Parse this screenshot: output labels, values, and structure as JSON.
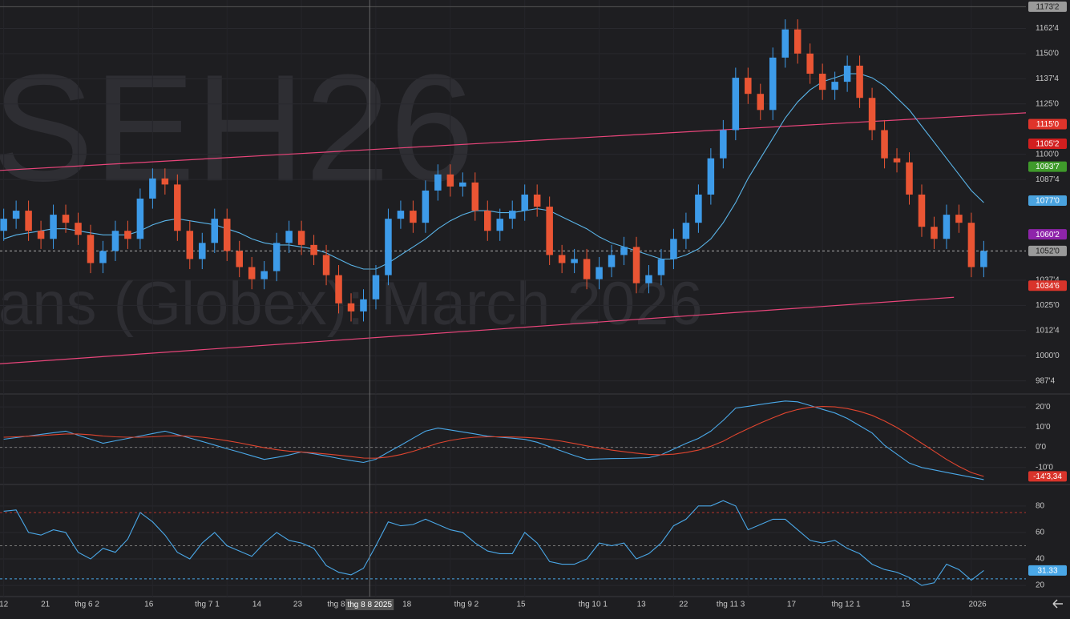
{
  "chart_data": [
    {
      "type": "candlestick",
      "watermark": "SEH26",
      "watermark_subtitle": "ans (Globex): March 2026",
      "xlim": [
        -0.3,
        82.4
      ],
      "ylim": [
        981,
        1176.6
      ],
      "yticks": [
        {
          "value": 987.5,
          "label": "987'4"
        },
        {
          "value": 1000,
          "label": "1000'0"
        },
        {
          "value": 1012.5,
          "label": "1012'4"
        },
        {
          "value": 1025,
          "label": "1025'0"
        },
        {
          "value": 1037.5,
          "label": "1037'4"
        },
        {
          "value": 1087.5,
          "label": "1087'4"
        },
        {
          "value": 1100,
          "label": "1100'0"
        },
        {
          "value": 1125,
          "label": "1125'0"
        },
        {
          "value": 1137.5,
          "label": "1137'4"
        },
        {
          "value": 1150,
          "label": "1150'0"
        },
        {
          "value": 1162.5,
          "label": "1162'4"
        }
      ],
      "up_color": "#3d9be9",
      "down_color": "#ea5534",
      "open": [
        1062,
        1068,
        1072,
        1062,
        1058,
        1070,
        1066,
        1060,
        1046,
        1052,
        1062,
        1058,
        1078,
        1088,
        1085,
        1062,
        1048,
        1056,
        1068,
        1052,
        1044,
        1038,
        1042,
        1056,
        1062,
        1055,
        1050,
        1040,
        1026,
        1022,
        1028,
        1040,
        1068,
        1072,
        1066,
        1082,
        1090,
        1084,
        1086,
        1072,
        1062,
        1068,
        1072,
        1080,
        1074,
        1050,
        1046,
        1048,
        1038,
        1044,
        1050,
        1054,
        1036,
        1040,
        1048,
        1058,
        1066,
        1080,
        1098,
        1112,
        1138,
        1130,
        1122,
        1148,
        1162,
        1150,
        1140,
        1132,
        1136,
        1144,
        1128,
        1112,
        1098,
        1096,
        1080,
        1064,
        1058,
        1070,
        1066,
        1044
      ],
      "high": [
        1073,
        1077,
        1077,
        1067,
        1075,
        1075,
        1071,
        1065,
        1057,
        1067,
        1067,
        1083,
        1093,
        1093,
        1090,
        1067,
        1061,
        1073,
        1073,
        1057,
        1049,
        1047,
        1061,
        1067,
        1067,
        1060,
        1055,
        1045,
        1031,
        1033,
        1045,
        1073,
        1077,
        1077,
        1087,
        1095,
        1095,
        1091,
        1091,
        1077,
        1073,
        1077,
        1085,
        1085,
        1079,
        1055,
        1053,
        1053,
        1049,
        1055,
        1059,
        1059,
        1045,
        1053,
        1063,
        1071,
        1085,
        1103,
        1117,
        1143,
        1143,
        1135,
        1153,
        1167,
        1167,
        1155,
        1145,
        1141,
        1149,
        1149,
        1133,
        1117,
        1103,
        1101,
        1085,
        1069,
        1075,
        1075,
        1071,
        1057
      ],
      "low": [
        1057,
        1063,
        1057,
        1053,
        1053,
        1061,
        1055,
        1041,
        1041,
        1047,
        1053,
        1053,
        1073,
        1080,
        1057,
        1043,
        1043,
        1051,
        1047,
        1039,
        1033,
        1033,
        1037,
        1051,
        1050,
        1045,
        1035,
        1021,
        1017,
        1017,
        1023,
        1035,
        1063,
        1061,
        1061,
        1077,
        1079,
        1079,
        1067,
        1057,
        1057,
        1063,
        1067,
        1069,
        1045,
        1041,
        1041,
        1033,
        1033,
        1039,
        1045,
        1031,
        1031,
        1035,
        1043,
        1053,
        1061,
        1075,
        1093,
        1107,
        1125,
        1117,
        1117,
        1143,
        1145,
        1135,
        1127,
        1127,
        1131,
        1123,
        1107,
        1093,
        1091,
        1075,
        1059,
        1053,
        1053,
        1061,
        1039,
        1039
      ],
      "close": [
        1068,
        1072,
        1062,
        1058,
        1070,
        1066,
        1060,
        1046,
        1052,
        1062,
        1058,
        1078,
        1088,
        1085,
        1062,
        1048,
        1056,
        1068,
        1052,
        1044,
        1038,
        1042,
        1056,
        1062,
        1055,
        1050,
        1040,
        1026,
        1022,
        1028,
        1040,
        1068,
        1072,
        1066,
        1082,
        1090,
        1084,
        1086,
        1072,
        1062,
        1068,
        1072,
        1080,
        1074,
        1050,
        1046,
        1048,
        1038,
        1044,
        1050,
        1054,
        1036,
        1040,
        1048,
        1058,
        1066,
        1080,
        1098,
        1112,
        1138,
        1130,
        1122,
        1148,
        1162,
        1150,
        1140,
        1132,
        1136,
        1144,
        1128,
        1112,
        1098,
        1096,
        1080,
        1064,
        1058,
        1070,
        1066,
        1044,
        1052
      ],
      "series": [
        {
          "color": "#5ab4e8",
          "values": [
            1058,
            1060,
            1061,
            1062,
            1063,
            1063,
            1062,
            1061,
            1060,
            1060,
            1060,
            1062,
            1065,
            1067,
            1068,
            1067,
            1066,
            1065,
            1063,
            1061,
            1058,
            1056,
            1055,
            1055,
            1054,
            1053,
            1051,
            1048,
            1045,
            1043,
            1043,
            1046,
            1050,
            1054,
            1058,
            1063,
            1067,
            1070,
            1072,
            1072,
            1071,
            1071,
            1072,
            1073,
            1072,
            1069,
            1066,
            1063,
            1059,
            1056,
            1054,
            1052,
            1050,
            1048,
            1048,
            1050,
            1053,
            1058,
            1066,
            1076,
            1088,
            1098,
            1108,
            1118,
            1126,
            1132,
            1136,
            1138,
            1140,
            1140,
            1138,
            1134,
            1128,
            1122,
            1114,
            1106,
            1098,
            1090,
            1082,
            1076
          ]
        }
      ],
      "trendlines": [
        {
          "color": "#e8457a",
          "x": [
            -0.3,
            82.4
          ],
          "y": [
            1092,
            1120.6
          ]
        },
        {
          "color": "#e8457a",
          "x": [
            -0.3,
            76.6
          ],
          "y": [
            996,
            1029
          ]
        }
      ],
      "ref_lines": [
        {
          "value": 1173.25,
          "color": "#555",
          "dash": false
        },
        {
          "value": 1052,
          "color": "#aaa",
          "dash": true
        }
      ],
      "markers": [
        {
          "value": 1173.25,
          "label": "1173'2",
          "color": "#9a9a9a"
        },
        {
          "value": 1115,
          "label": "1115'0",
          "color": "#e0342b"
        },
        {
          "value": 1105.25,
          "label": "1105'2",
          "color": "#d11f1f"
        },
        {
          "value": 1093.875,
          "label": "1093'7",
          "color": "#3f9a2b"
        },
        {
          "value": 1077,
          "label": "1077'0",
          "color": "#4aa3df"
        },
        {
          "value": 1060.25,
          "label": "1060'2",
          "color": "#8e24aa"
        },
        {
          "value": 1052,
          "label": "1052'0",
          "color": "#9a9a9a"
        },
        {
          "value": 1034.75,
          "label": "1034'6",
          "color": "#d9342b"
        }
      ]
    },
    {
      "type": "line",
      "xlim": [
        -0.3,
        82.4
      ],
      "ylim": [
        -18.4,
        26
      ],
      "yticks": [
        {
          "value": -10,
          "label": "-10'0"
        },
        {
          "value": 0,
          "label": "0'0"
        },
        {
          "value": 10,
          "label": "10'0"
        },
        {
          "value": 20,
          "label": "20'0"
        }
      ],
      "ref_lines": [
        {
          "value": 0,
          "color": "#777",
          "dash": true
        }
      ],
      "series": [
        {
          "color": "#4aa8e8",
          "values": [
            4,
            4.8,
            5.6,
            6.4,
            7.2,
            8,
            6,
            4,
            2,
            3.2,
            4.4,
            5.6,
            6.8,
            8,
            6.3,
            4.6,
            2.9,
            1.1,
            -0.7,
            -2.4,
            -4.2,
            -6,
            -5,
            -3.8,
            -2.3,
            -3.2,
            -4.3,
            -5.5,
            -6.6,
            -7.5,
            -5.9,
            -2.4,
            1,
            4.5,
            8,
            9.5,
            8.6,
            7.6,
            6.6,
            5.5,
            5,
            4.5,
            3.9,
            2.5,
            0.3,
            -1.9,
            -4.1,
            -6,
            -5.8,
            -5.6,
            -5.5,
            -5.3,
            -5.1,
            -3.7,
            -0.9,
            1.9,
            4.4,
            8,
            13.3,
            19.4,
            20.3,
            21.2,
            22.1,
            22.9,
            22.5,
            20.7,
            18.8,
            17,
            14.3,
            10.7,
            7.1,
            1,
            -3.4,
            -7.8,
            -10,
            -11.2,
            -12.4,
            -13.6,
            -14.8,
            -16
          ]
        },
        {
          "color": "#e0452f",
          "values": [
            5,
            5.2,
            5.5,
            5.8,
            6.2,
            6.6,
            6.6,
            6.2,
            5.6,
            5.2,
            5,
            5,
            5.2,
            5.6,
            5.7,
            5.5,
            5,
            4.2,
            3.3,
            2.2,
            1,
            -0.2,
            -1.2,
            -1.9,
            -2.3,
            -2.8,
            -3.3,
            -3.9,
            -4.6,
            -5.3,
            -5.4,
            -4.8,
            -3.6,
            -2,
            0,
            2,
            3.4,
            4.4,
            5,
            5.2,
            5.2,
            5.1,
            4.9,
            4.5,
            3.9,
            3,
            1.9,
            0.7,
            -0.4,
            -1.4,
            -2.2,
            -2.9,
            -3.5,
            -3.7,
            -3.4,
            -2.6,
            -1.4,
            0.5,
            3,
            6.3,
            9.2,
            12,
            14.6,
            17,
            18.7,
            19.8,
            20.2,
            20,
            19.2,
            17.8,
            15.8,
            13,
            9.8,
            6,
            2,
            -2,
            -6,
            -9.5,
            -12.5,
            -14.4
          ]
        }
      ],
      "markers": [
        {
          "value": -14.4,
          "label": "-14'3,34",
          "color": "#d9342b"
        }
      ]
    },
    {
      "type": "line",
      "xlim": [
        -0.3,
        82.4
      ],
      "ylim": [
        11.6,
        95.6
      ],
      "yticks": [
        20,
        40,
        60,
        80
      ],
      "ref_lines": [
        {
          "value": 75,
          "color": "#b3322b",
          "dash": true
        },
        {
          "value": 50,
          "color": "#777",
          "dash": true
        },
        {
          "value": 25,
          "color": "#4aa8e8",
          "dash": true
        }
      ],
      "series": [
        {
          "color": "#4aa8e8",
          "values": [
            76,
            77,
            60,
            58,
            62,
            60,
            45,
            40,
            48,
            45,
            55,
            75,
            68,
            58,
            45,
            40,
            52,
            60,
            50,
            46,
            42,
            52,
            60,
            54,
            52,
            48,
            35,
            30,
            28,
            33,
            50,
            68,
            65,
            66,
            70,
            66,
            62,
            60,
            52,
            46,
            44,
            44,
            60,
            52,
            38,
            36,
            36,
            40,
            52,
            50,
            52,
            40,
            44,
            52,
            65,
            70,
            80,
            80,
            84,
            80,
            62,
            66,
            70,
            70,
            62,
            54,
            52,
            54,
            48,
            44,
            36,
            32,
            30,
            26,
            20,
            22,
            36,
            32,
            24,
            31.33
          ]
        }
      ],
      "markers": [
        {
          "value": 31.33,
          "label": "31.33",
          "color": "#4aa8e8"
        }
      ],
      "xticks": [
        {
          "value": 0,
          "label": "12"
        },
        {
          "value": 3.36,
          "label": "21"
        },
        {
          "value": 6.72,
          "label": "thg 6 2"
        },
        {
          "value": 11.7,
          "label": "16"
        },
        {
          "value": 16.4,
          "label": "thg 7 1"
        },
        {
          "value": 20.4,
          "label": "14"
        },
        {
          "value": 23.7,
          "label": "23"
        },
        {
          "value": 26.8,
          "label": "thg 8"
        },
        {
          "value": 32.5,
          "label": "18"
        },
        {
          "value": 37.3,
          "label": "thg 9 2"
        },
        {
          "value": 41.7,
          "label": "15"
        },
        {
          "value": 47.5,
          "label": "thg 10 1"
        },
        {
          "value": 51.4,
          "label": "13"
        },
        {
          "value": 54.8,
          "label": "22"
        },
        {
          "value": 58.6,
          "label": "thg 11 3"
        },
        {
          "value": 63.5,
          "label": "17"
        },
        {
          "value": 67.9,
          "label": "thg 12 1"
        },
        {
          "value": 72.7,
          "label": "15"
        },
        {
          "value": 78.5,
          "label": "2026"
        }
      ],
      "crosshair": {
        "x": 29.5,
        "label": "thg 8 8 2025"
      }
    }
  ]
}
